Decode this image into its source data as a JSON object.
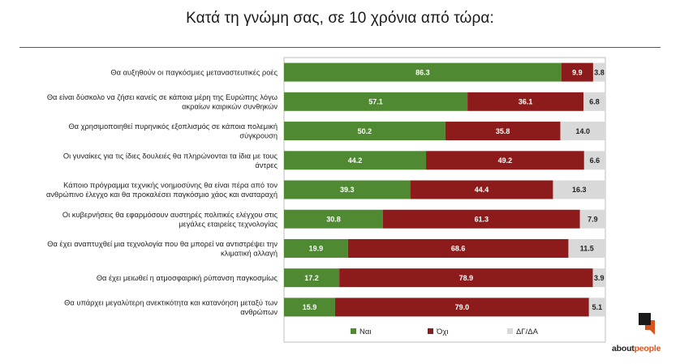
{
  "chart_data": {
    "type": "bar",
    "orientation": "horizontal",
    "stacked": true,
    "title": "Κατά τη γνώμη σας, σε 10 χρόνια από τώρα:",
    "categories": [
      [
        "Θα αυξηθούν οι παγκόσμιες μεταναστευτικές ροές"
      ],
      [
        "Θα είναι δύσκολο να ζήσει κανείς σε κάποια μέρη της Ευρώπης λόγω",
        "ακραίων καιρικών συνθηκών"
      ],
      [
        "Θα χρησιμοποιηθεί πυρηνικός εξοπλισμός σε κάποια πολεμική",
        "σύγκρουση"
      ],
      [
        "Οι γυναίκες για τις ίδιες δουλειές θα πληρώνονται τα ίδια με τους",
        "άντρες"
      ],
      [
        "Κάποιο πρόγραμμα τεχνικής νοημοσύνης θα είναι πέρα από τον",
        "ανθρώπινο έλεγχο και θα προκαλέσει παγκόσμιο χάος και αναταραχή"
      ],
      [
        "Οι κυβερνήσεις θα εφαρμόσουν αυστηρές πολιτικές ελέγχου στις",
        "μεγάλες εταιρείες τεχνολογίας"
      ],
      [
        "Θα έχει αναπτυχθεί μια τεχνολογία που θα μπορεί να αντιστρέψει την",
        "κλιματική αλλαγή"
      ],
      [
        "Θα έχει μειωθεί η ατμοσφαιρική ρύπανση παγκοσμίως"
      ],
      [
        "Θα υπάρχει μεγαλύτερη ανεκτικότητα και κατανόηση μεταξύ των",
        "ανθρώπων"
      ]
    ],
    "series": [
      {
        "name": "Ναι",
        "color": "#4f8a33",
        "label_color": "#ffffff",
        "values": [
          86.3,
          57.1,
          50.2,
          44.2,
          39.3,
          30.8,
          19.9,
          17.2,
          15.9
        ]
      },
      {
        "name": "Όχι",
        "color": "#8e1b1b",
        "label_color": "#ffffff",
        "values": [
          9.9,
          36.1,
          35.8,
          49.2,
          44.4,
          61.3,
          68.6,
          78.9,
          79.0
        ]
      },
      {
        "name": "ΔΓ/ΔΑ",
        "color": "#d9d9d9",
        "label_color": "#222222",
        "values": [
          3.8,
          6.8,
          14.0,
          6.6,
          16.3,
          7.9,
          11.5,
          3.9,
          5.1
        ]
      }
    ],
    "xlim": [
      0,
      100
    ],
    "legend_position": "bottom",
    "value_decimals": 1
  },
  "brand": {
    "name_part1": "about",
    "name_part2": "people"
  }
}
